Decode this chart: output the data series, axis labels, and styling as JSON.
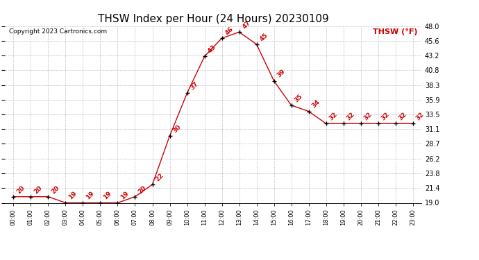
{
  "title": "THSW Index per Hour (24 Hours) 20230109",
  "copyright": "Copyright 2023 Cartronics.com",
  "legend_label": "THSW (°F)",
  "hours": [
    "00:00",
    "01:00",
    "02:00",
    "03:00",
    "04:00",
    "05:00",
    "06:00",
    "07:00",
    "08:00",
    "09:00",
    "10:00",
    "11:00",
    "12:00",
    "13:00",
    "14:00",
    "15:00",
    "16:00",
    "17:00",
    "18:00",
    "19:00",
    "20:00",
    "21:00",
    "22:00",
    "23:00"
  ],
  "values": [
    20,
    20,
    20,
    19,
    19,
    19,
    19,
    20,
    22,
    30,
    37,
    43,
    46,
    47,
    45,
    39,
    35,
    34,
    32,
    32,
    32,
    32,
    32,
    32
  ],
  "line_color": "#cc0000",
  "marker_color": "#000000",
  "label_color": "#cc0000",
  "background_color": "#ffffff",
  "grid_color": "#bbbbbb",
  "ylim": [
    19.0,
    48.0
  ],
  "yticks": [
    19.0,
    21.4,
    23.8,
    26.2,
    28.7,
    31.1,
    33.5,
    35.9,
    38.3,
    40.8,
    43.2,
    45.6,
    48.0
  ],
  "title_fontsize": 11,
  "label_fontsize": 6.5,
  "copyright_fontsize": 6.5,
  "legend_fontsize": 8,
  "ytick_fontsize": 7,
  "xtick_fontsize": 6
}
